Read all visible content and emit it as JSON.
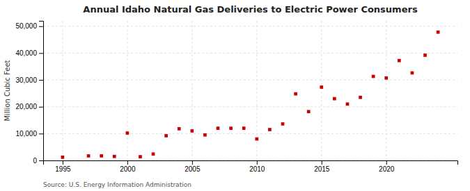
{
  "chart_data": {
    "type": "scatter",
    "title": "Annual Idaho Natural Gas Deliveries to Electric Power Consumers",
    "ylabel": "Million Cubic Feet",
    "source": "Source: U.S. Energy Information Administration",
    "x": [
      1995,
      1997,
      1998,
      1999,
      2000,
      2001,
      2002,
      2003,
      2004,
      2005,
      2006,
      2007,
      2008,
      2009,
      2010,
      2011,
      2012,
      2013,
      2014,
      2015,
      2016,
      2017,
      2018,
      2019,
      2020,
      2021,
      2022,
      2023,
      2024
    ],
    "values": [
      1200,
      1700,
      1700,
      1500,
      10200,
      1400,
      2400,
      9200,
      11800,
      11000,
      9500,
      12000,
      12000,
      12000,
      8000,
      11500,
      13600,
      24800,
      18200,
      27300,
      23000,
      21000,
      23500,
      31300,
      30700,
      37200,
      32600,
      39200,
      47800
    ],
    "color": "#cc0000",
    "marker": "square",
    "grid": true,
    "xlim": [
      1993.5,
      2025.5
    ],
    "xticks": [
      1995,
      2000,
      2005,
      2010,
      2015,
      2020
    ],
    "ylim": [
      0,
      52000
    ],
    "yticks": [
      0,
      {
        "value": 10000,
        "label": "10,000"
      },
      {
        "value": 20000,
        "label": "20,000"
      },
      {
        "value": 30000,
        "label": "30,000"
      },
      {
        "value": 40000,
        "label": "40,000"
      },
      {
        "value": 50000,
        "label": "50,000"
      }
    ]
  }
}
